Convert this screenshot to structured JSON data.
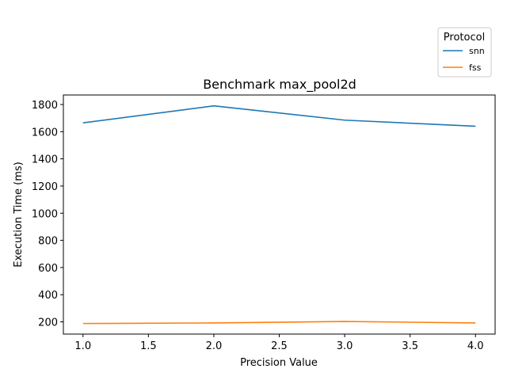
{
  "chart_data": {
    "type": "line",
    "title": "Benchmark max_pool2d",
    "xlabel": "Precision Value",
    "ylabel": "Execution Time (ms)",
    "x": [
      1.0,
      2.0,
      3.0,
      4.0
    ],
    "xticks": [
      "1.0",
      "1.5",
      "2.0",
      "2.5",
      "3.0",
      "3.5",
      "4.0"
    ],
    "xtick_values": [
      1.0,
      1.5,
      2.0,
      2.5,
      3.0,
      3.5,
      4.0
    ],
    "yticks": [
      "200",
      "400",
      "600",
      "800",
      "1000",
      "1200",
      "1400",
      "1600",
      "1800"
    ],
    "ytick_values": [
      200,
      400,
      600,
      800,
      1000,
      1200,
      1400,
      1600,
      1800
    ],
    "xlim": [
      0.85,
      4.15
    ],
    "ylim": [
      110,
      1870
    ],
    "grid": false,
    "legend": {
      "title": "Protocol",
      "placement": "top-right, outside plot"
    },
    "series": [
      {
        "name": "snn",
        "color": "#1f77b4",
        "values": [
          1665,
          1790,
          1685,
          1640
        ]
      },
      {
        "name": "fss",
        "color": "#ff7f0e",
        "values": [
          188,
          192,
          203,
          192
        ]
      }
    ]
  }
}
